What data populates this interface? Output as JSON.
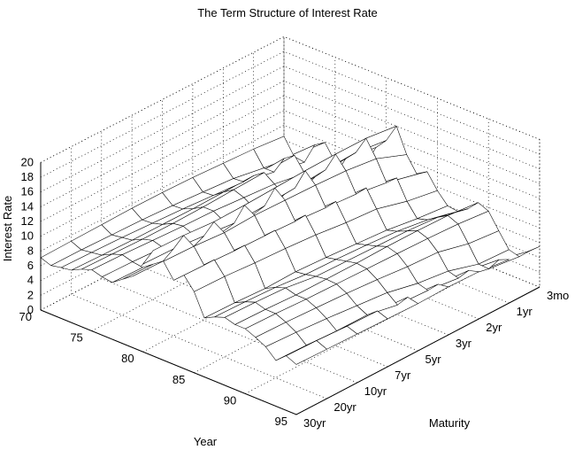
{
  "chart_data": {
    "type": "surface",
    "title": "The Term Structure of Interest Rate",
    "xlabel": "Year",
    "ylabel": "Maturity",
    "zlabel": "Interest Rate",
    "year_ticks": [
      "70",
      "75",
      "80",
      "85",
      "90",
      "95"
    ],
    "year_range": [
      70,
      95
    ],
    "maturity_ticks": [
      "3mo",
      "1yr",
      "2yr",
      "3yr",
      "5yr",
      "7yr",
      "10yr",
      "20yr",
      "30yr"
    ],
    "rate_ticks": [
      "0",
      "2",
      "4",
      "6",
      "8",
      "10",
      "12",
      "14",
      "16",
      "18",
      "20"
    ],
    "zlim": [
      0,
      20
    ],
    "grid": true,
    "series": [
      {
        "maturity": "3mo",
        "values": [
          6.5,
          4.3,
          4.1,
          7.0,
          7.9,
          5.8,
          5.0,
          5.3,
          7.2,
          10.0,
          11.5,
          14.0,
          10.7,
          8.6,
          9.5,
          7.5,
          6.0,
          5.8,
          6.7,
          8.1,
          7.5,
          5.4,
          3.4,
          3.0,
          4.3,
          5.5
        ]
      },
      {
        "maturity": "1yr",
        "values": [
          6.9,
          4.9,
          4.9,
          7.3,
          8.3,
          6.4,
          5.5,
          6.0,
          7.9,
          10.6,
          12.0,
          14.5,
          12.3,
          9.6,
          10.8,
          8.2,
          6.4,
          6.8,
          7.7,
          8.5,
          7.9,
          5.8,
          3.6,
          3.5,
          5.3,
          5.9
        ]
      },
      {
        "maturity": "2yr",
        "values": [
          7.1,
          5.6,
          5.7,
          7.1,
          8.1,
          7.1,
          6.2,
          6.6,
          8.3,
          10.3,
          11.8,
          14.5,
          12.8,
          10.2,
          11.6,
          9.3,
          7.0,
          7.4,
          8.0,
          8.6,
          8.1,
          6.8,
          4.8,
          4.4,
          6.0,
          6.4
        ]
      },
      {
        "maturity": "3yr",
        "values": [
          7.3,
          5.9,
          6.0,
          7.0,
          7.9,
          7.4,
          6.5,
          6.7,
          8.3,
          10.1,
          11.5,
          14.4,
          13.0,
          10.5,
          11.9,
          9.6,
          7.3,
          7.7,
          8.1,
          8.6,
          8.2,
          7.0,
          5.3,
          4.9,
          6.3,
          6.5
        ]
      },
      {
        "maturity": "5yr",
        "values": [
          7.4,
          6.2,
          6.3,
          6.9,
          7.7,
          7.7,
          6.9,
          6.9,
          8.3,
          9.6,
          11.2,
          14.2,
          13.1,
          10.8,
          12.2,
          10.1,
          7.6,
          7.9,
          8.2,
          8.5,
          8.3,
          7.4,
          6.2,
          5.1,
          6.7,
          6.4
        ]
      },
      {
        "maturity": "7yr",
        "values": [
          7.4,
          6.4,
          6.5,
          6.9,
          7.6,
          7.8,
          7.2,
          7.0,
          8.3,
          9.4,
          11.0,
          14.0,
          13.2,
          11.0,
          12.3,
          10.4,
          7.8,
          8.0,
          8.3,
          8.5,
          8.4,
          7.7,
          6.6,
          5.9,
          7.0,
          6.5
        ]
      },
      {
        "maturity": "10yr",
        "values": [
          7.3,
          6.5,
          6.7,
          6.9,
          7.6,
          8.0,
          7.6,
          7.4,
          8.4,
          9.4,
          11.4,
          13.9,
          13.0,
          11.1,
          12.4,
          10.6,
          7.7,
          8.4,
          8.9,
          8.5,
          8.5,
          7.9,
          7.0,
          5.9,
          7.1,
          6.6
        ]
      },
      {
        "maturity": "20yr",
        "values": [
          7.2,
          6.6,
          6.8,
          7.0,
          7.7,
          8.2,
          7.8,
          7.6,
          8.6,
          9.6,
          11.8,
          14.2,
          13.3,
          11.3,
          12.6,
          10.9,
          7.9,
          8.6,
          9.1,
          8.7,
          8.7,
          8.1,
          7.3,
          6.1,
          7.3,
          6.7
        ]
      },
      {
        "maturity": "30yr",
        "values": [
          7.1,
          6.6,
          6.9,
          7.1,
          7.8,
          8.3,
          7.9,
          7.7,
          8.7,
          9.7,
          11.9,
          14.3,
          13.4,
          11.4,
          12.7,
          11.0,
          8.0,
          8.7,
          9.2,
          8.8,
          8.8,
          8.2,
          7.5,
          6.2,
          7.4,
          6.8
        ]
      }
    ]
  }
}
